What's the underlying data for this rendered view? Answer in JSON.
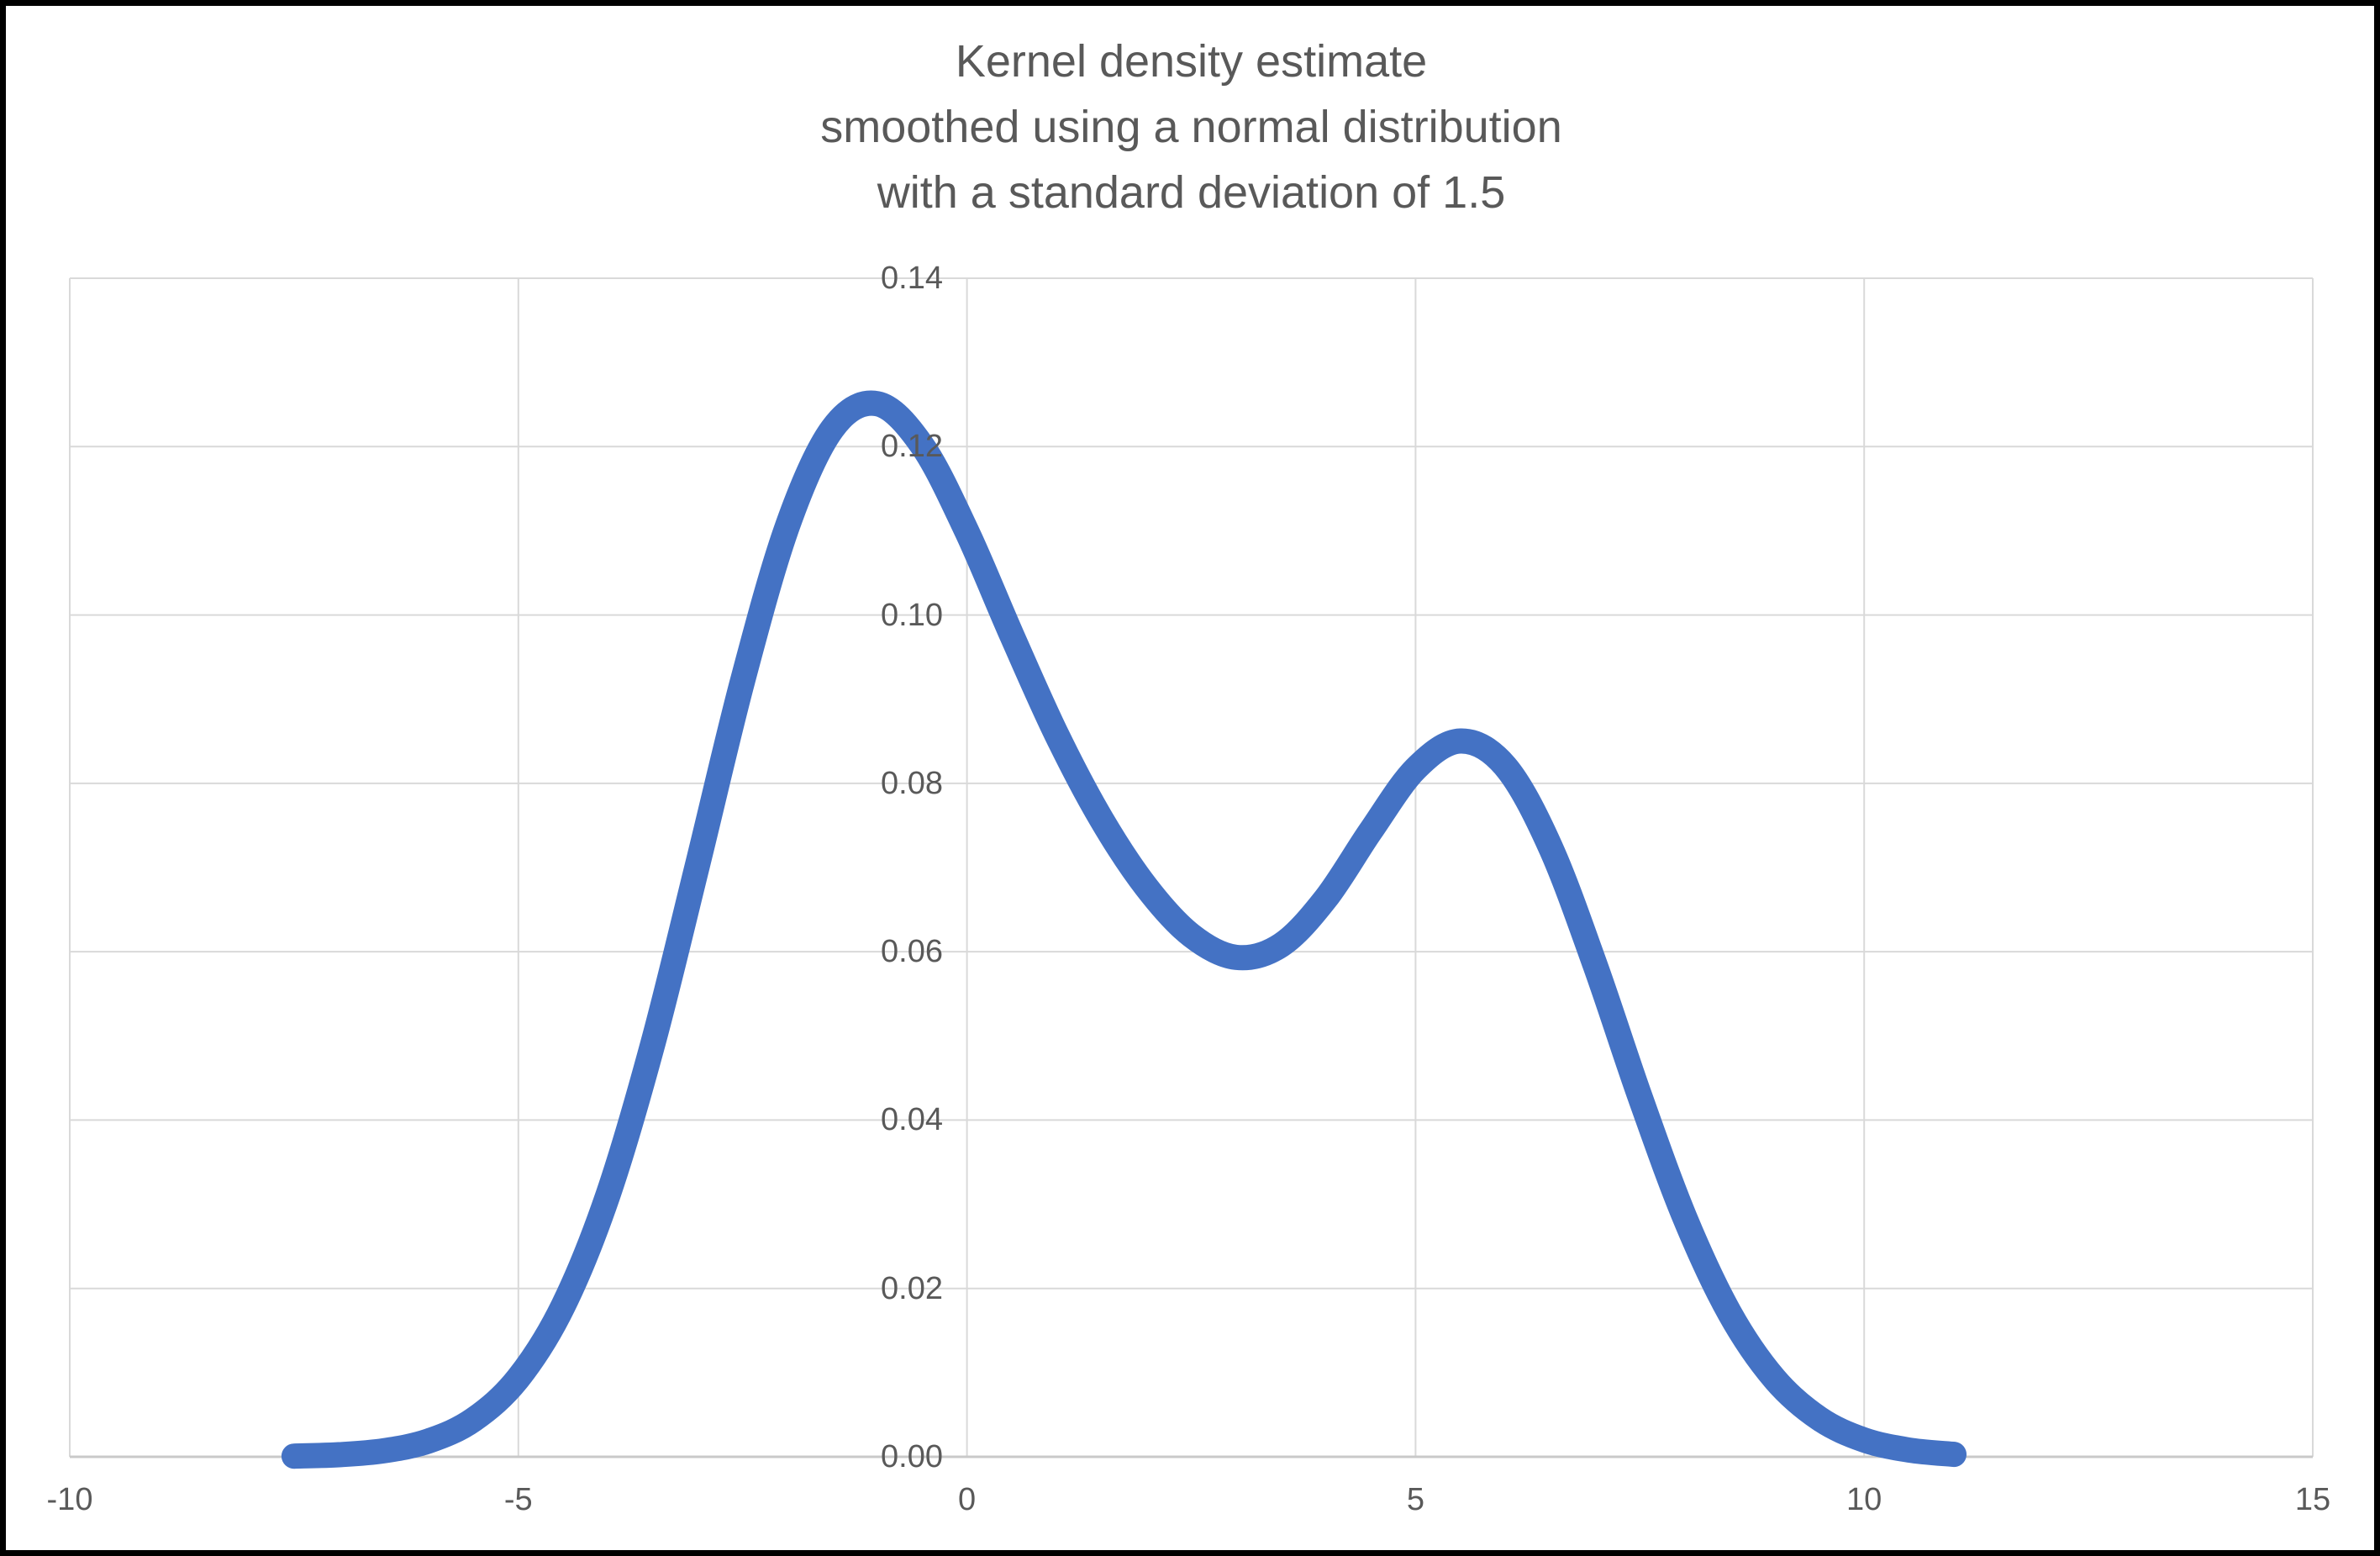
{
  "chart_title": {
    "lines": [
      "Kernel density estimate",
      "smoothed using a normal distribution",
      "with a standard deviation of 1.5"
    ]
  },
  "colors": {
    "curve": "#4472C4",
    "gridline": "#D9D9D9",
    "axis_line": "#C9C9C9",
    "text": "#595959",
    "background": "#FFFFFF",
    "frame": "#000000"
  },
  "chart_data": {
    "type": "line",
    "title": "Kernel density estimate smoothed using a normal distribution with a standard deviation of 1.5",
    "xlabel": "",
    "ylabel": "",
    "xlim": [
      -10,
      15
    ],
    "ylim": [
      0,
      0.14
    ],
    "grid": true,
    "legend": false,
    "x_ticks": [
      {
        "label": "-10",
        "value": -10
      },
      {
        "label": "-5",
        "value": -5
      },
      {
        "label": "0",
        "value": 0
      },
      {
        "label": "5",
        "value": 5
      },
      {
        "label": "10",
        "value": 10
      },
      {
        "label": "15",
        "value": 15
      }
    ],
    "y_ticks": [
      {
        "label": "0.00",
        "value": 0.0
      },
      {
        "label": "0.02",
        "value": 0.02
      },
      {
        "label": "0.04",
        "value": 0.04
      },
      {
        "label": "0.06",
        "value": 0.06
      },
      {
        "label": "0.08",
        "value": 0.08
      },
      {
        "label": "0.10",
        "value": 0.1
      },
      {
        "label": "0.12",
        "value": 0.12
      },
      {
        "label": "0.14",
        "value": 0.14
      }
    ],
    "series": [
      {
        "name": "Kernel density estimate",
        "color": "#4472C4",
        "stroke_width": 30,
        "smooth": true,
        "points": [
          [
            -7.5,
            8e-05
          ],
          [
            -7.0,
            0.00025
          ],
          [
            -6.5,
            0.00072
          ],
          [
            -6.0,
            0.00188
          ],
          [
            -5.5,
            0.00441
          ],
          [
            -5.0,
            0.00936
          ],
          [
            -4.5,
            0.01794
          ],
          [
            -4.0,
            0.03115
          ],
          [
            -3.5,
            0.0491
          ],
          [
            -3.0,
            0.07044
          ],
          [
            -2.5,
            0.09221
          ],
          [
            -2.0,
            0.11059
          ],
          [
            -1.5,
            0.12213
          ],
          [
            -1.0,
            0.1251
          ],
          [
            -0.5,
            0.12014
          ],
          [
            0.0,
            0.10989
          ],
          [
            0.5,
            0.09758
          ],
          [
            1.0,
            0.08578
          ],
          [
            1.5,
            0.07572
          ],
          [
            2.0,
            0.06767
          ],
          [
            2.5,
            0.06194
          ],
          [
            3.0,
            0.05933
          ],
          [
            3.5,
            0.06078
          ],
          [
            4.0,
            0.06632
          ],
          [
            4.5,
            0.07434
          ],
          [
            5.0,
            0.08172
          ],
          [
            5.5,
            0.08503
          ],
          [
            6.0,
            0.08202
          ],
          [
            6.5,
            0.07251
          ],
          [
            7.0,
            0.05846
          ],
          [
            7.5,
            0.04282
          ],
          [
            8.0,
            0.02843
          ],
          [
            8.5,
            0.01708
          ],
          [
            9.0,
            0.00928
          ],
          [
            9.5,
            0.00454
          ],
          [
            10.0,
            0.002
          ],
          [
            10.5,
            0.0008
          ],
          [
            11.0,
            0.00029
          ]
        ]
      }
    ]
  }
}
